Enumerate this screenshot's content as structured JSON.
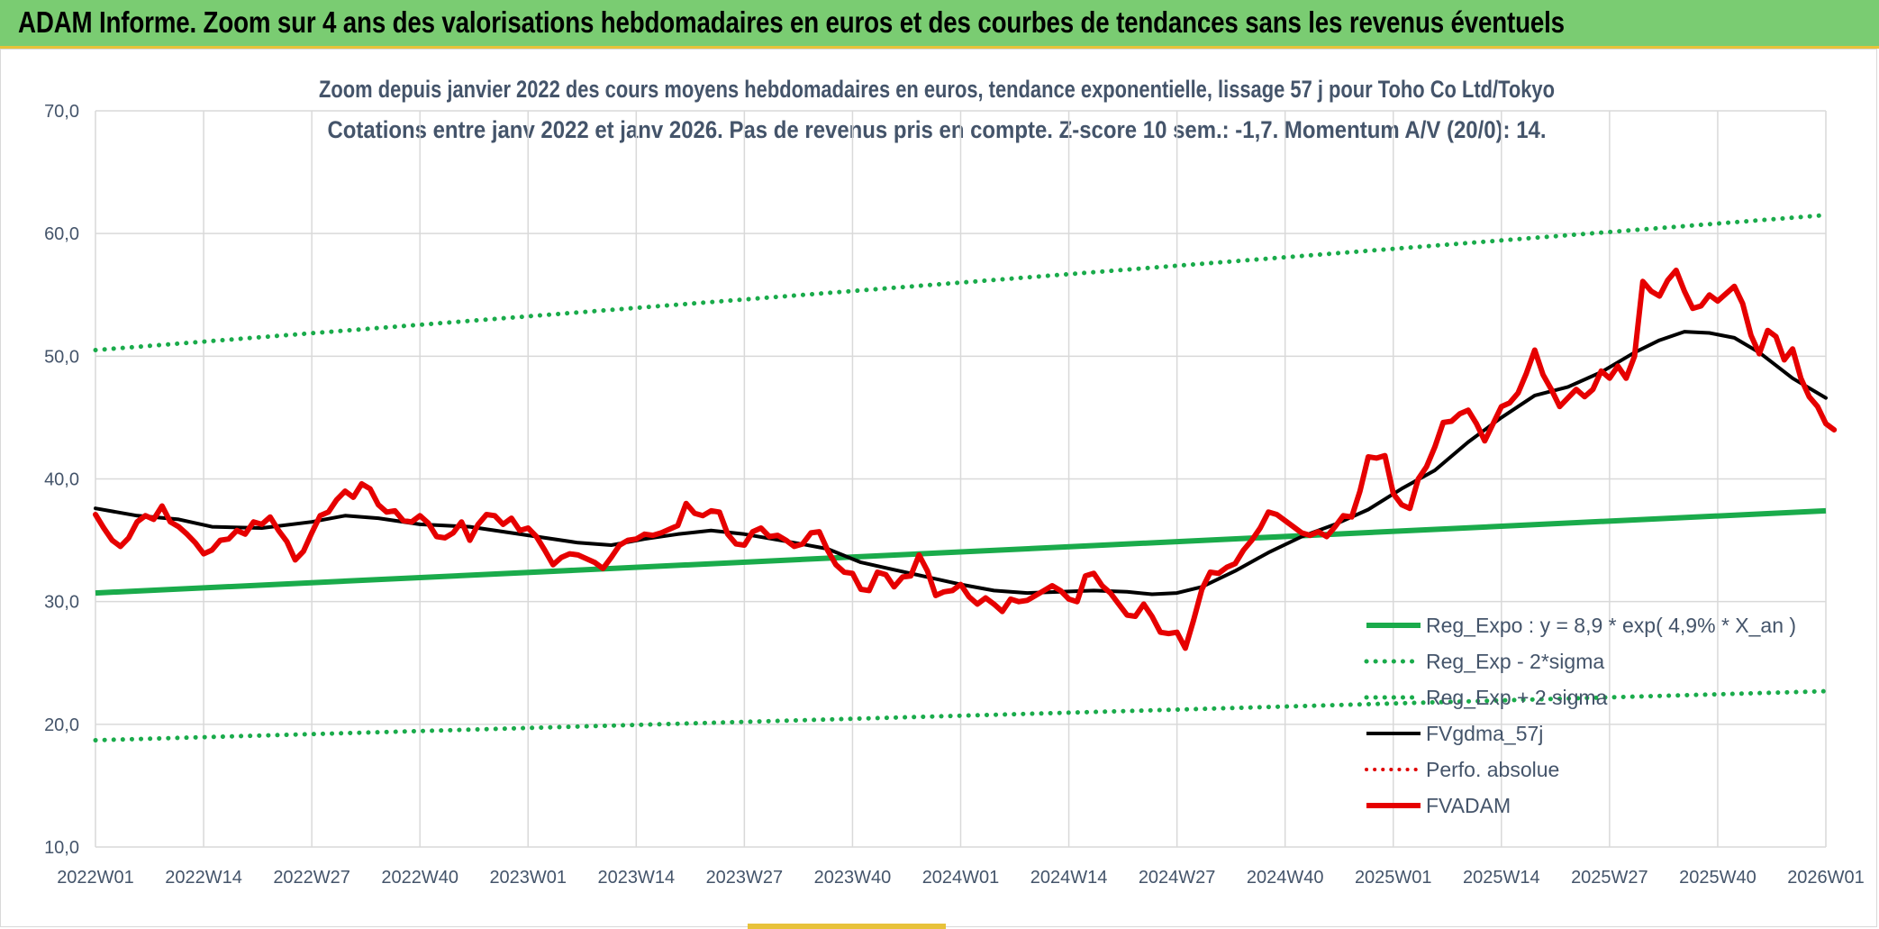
{
  "header": {
    "title": "ADAM Informe. Zoom sur 4 ans des valorisations hebdomadaires en euros et des courbes de tendances sans les revenus éventuels"
  },
  "colors": {
    "banner": "#7acc72",
    "regression": "#1aab4b",
    "fvgdma": "#000000",
    "perfo": "#e00000",
    "fvadam": "#e60000",
    "grid": "#d9d9d9",
    "text": "#44546a"
  },
  "chart_data": {
    "type": "line",
    "title_line1": "Zoom depuis janvier 2022 des cours moyens hebdomadaires en euros, tendance exponentielle, lissage 57 j pour Toho Co Ltd/Tokyo",
    "title_line2": "Cotations entre janv 2022 et janv 2026. Pas de revenus pris en compte. Z-score 10 sem.: -1,7. Momentum A/V (20/0): 14.",
    "xlabel": "",
    "ylabel": "",
    "x_index_range": [
      0,
      208
    ],
    "ylim": [
      10,
      70
    ],
    "yticks": [
      10,
      20,
      30,
      40,
      50,
      60,
      70
    ],
    "ytick_labels": [
      "10,0",
      "20,0",
      "30,0",
      "40,0",
      "50,0",
      "60,0",
      "70,0"
    ],
    "xticks": [
      {
        "i": 0,
        "label": "2022W01"
      },
      {
        "i": 13,
        "label": "2022W14"
      },
      {
        "i": 26,
        "label": "2022W27"
      },
      {
        "i": 39,
        "label": "2022W40"
      },
      {
        "i": 52,
        "label": "2023W01"
      },
      {
        "i": 65,
        "label": "2023W14"
      },
      {
        "i": 78,
        "label": "2023W27"
      },
      {
        "i": 91,
        "label": "2023W40"
      },
      {
        "i": 104,
        "label": "2024W01"
      },
      {
        "i": 117,
        "label": "2024W14"
      },
      {
        "i": 130,
        "label": "2024W27"
      },
      {
        "i": 143,
        "label": "2024W40"
      },
      {
        "i": 156,
        "label": "2025W01"
      },
      {
        "i": 169,
        "label": "2025W14"
      },
      {
        "i": 182,
        "label": "2025W27"
      },
      {
        "i": 195,
        "label": "2025W40"
      },
      {
        "i": 208,
        "label": "2026W01"
      }
    ],
    "legend": [
      {
        "key": "reg",
        "label": "Reg_Expo : y = 8,9 * exp( 4,9% *  X_an )",
        "style": "solid-green"
      },
      {
        "key": "minus",
        "label": "Reg_Exp - 2*sigma",
        "style": "dotted-green"
      },
      {
        "key": "plus",
        "label": "Reg_Exp + 2 sigma",
        "style": "dotted-green"
      },
      {
        "key": "fvgdma",
        "label": "FVgdma_57j",
        "style": "solid-black"
      },
      {
        "key": "perfo",
        "label": "Perfo. absolue",
        "style": "dotted-red"
      },
      {
        "key": "fvadam",
        "label": "FVADAM",
        "style": "solid-red"
      }
    ],
    "series": [
      {
        "name": "Reg_Expo",
        "points": [
          [
            0,
            30.7
          ],
          [
            208,
            37.4
          ]
        ]
      },
      {
        "name": "Reg_Exp - 2*sigma",
        "points": [
          [
            0,
            18.7
          ],
          [
            208,
            22.7
          ]
        ]
      },
      {
        "name": "Reg_Exp + 2 sigma",
        "points": [
          [
            0,
            50.5
          ],
          [
            208,
            61.5
          ]
        ]
      },
      {
        "name": "FVgdma_57j",
        "points": [
          [
            0,
            37.6
          ],
          [
            5,
            37.0
          ],
          [
            10,
            36.7
          ],
          [
            14,
            36.1
          ],
          [
            20,
            36.0
          ],
          [
            26,
            36.5
          ],
          [
            30,
            37.0
          ],
          [
            34,
            36.8
          ],
          [
            39,
            36.3
          ],
          [
            45,
            36.1
          ],
          [
            52,
            35.4
          ],
          [
            58,
            34.8
          ],
          [
            62,
            34.6
          ],
          [
            66,
            35.1
          ],
          [
            70,
            35.5
          ],
          [
            74,
            35.8
          ],
          [
            78,
            35.5
          ],
          [
            84,
            34.8
          ],
          [
            88,
            34.3
          ],
          [
            92,
            33.2
          ],
          [
            96,
            32.6
          ],
          [
            100,
            32.0
          ],
          [
            104,
            31.4
          ],
          [
            108,
            30.9
          ],
          [
            112,
            30.7
          ],
          [
            116,
            30.8
          ],
          [
            120,
            30.9
          ],
          [
            124,
            30.8
          ],
          [
            127,
            30.6
          ],
          [
            130,
            30.7
          ],
          [
            133,
            31.2
          ],
          [
            137,
            32.5
          ],
          [
            141,
            34.0
          ],
          [
            145,
            35.3
          ],
          [
            149,
            36.3
          ],
          [
            153,
            37.5
          ],
          [
            157,
            39.2
          ],
          [
            161,
            40.7
          ],
          [
            165,
            43.0
          ],
          [
            169,
            45.0
          ],
          [
            173,
            46.8
          ],
          [
            177,
            47.5
          ],
          [
            181,
            48.7
          ],
          [
            185,
            50.3
          ],
          [
            188,
            51.3
          ],
          [
            191,
            52.0
          ],
          [
            194,
            51.9
          ],
          [
            197,
            51.5
          ],
          [
            200,
            50.3
          ],
          [
            204,
            48.2
          ],
          [
            208,
            46.6
          ]
        ]
      },
      {
        "name": "FVADAM",
        "points": [
          [
            0,
            37.1
          ],
          [
            1,
            36.0
          ],
          [
            2,
            35.0
          ],
          [
            3,
            34.5
          ],
          [
            4,
            35.2
          ],
          [
            5,
            36.5
          ],
          [
            6,
            37.0
          ],
          [
            7,
            36.7
          ],
          [
            8,
            37.8
          ],
          [
            9,
            36.5
          ],
          [
            10,
            36.1
          ],
          [
            11,
            35.5
          ],
          [
            12,
            34.8
          ],
          [
            13,
            33.9
          ],
          [
            14,
            34.2
          ],
          [
            15,
            35.0
          ],
          [
            16,
            35.1
          ],
          [
            17,
            35.8
          ],
          [
            18,
            35.5
          ],
          [
            19,
            36.5
          ],
          [
            20,
            36.3
          ],
          [
            21,
            36.9
          ],
          [
            22,
            35.8
          ],
          [
            23,
            34.9
          ],
          [
            24,
            33.4
          ],
          [
            25,
            34.1
          ],
          [
            26,
            35.6
          ],
          [
            27,
            37.0
          ],
          [
            28,
            37.3
          ],
          [
            29,
            38.3
          ],
          [
            30,
            39.0
          ],
          [
            31,
            38.5
          ],
          [
            32,
            39.6
          ],
          [
            33,
            39.2
          ],
          [
            34,
            37.9
          ],
          [
            35,
            37.3
          ],
          [
            36,
            37.4
          ],
          [
            37,
            36.6
          ],
          [
            38,
            36.5
          ],
          [
            39,
            37.0
          ],
          [
            40,
            36.4
          ],
          [
            41,
            35.3
          ],
          [
            42,
            35.2
          ],
          [
            43,
            35.6
          ],
          [
            44,
            36.5
          ],
          [
            45,
            35.0
          ],
          [
            46,
            36.3
          ],
          [
            47,
            37.1
          ],
          [
            48,
            37.0
          ],
          [
            49,
            36.3
          ],
          [
            50,
            36.8
          ],
          [
            51,
            35.8
          ],
          [
            52,
            36.0
          ],
          [
            53,
            35.3
          ],
          [
            54,
            34.2
          ],
          [
            55,
            33.0
          ],
          [
            56,
            33.6
          ],
          [
            57,
            33.9
          ],
          [
            58,
            33.8
          ],
          [
            59,
            33.5
          ],
          [
            60,
            33.2
          ],
          [
            61,
            32.7
          ],
          [
            62,
            33.6
          ],
          [
            63,
            34.6
          ],
          [
            64,
            35.0
          ],
          [
            65,
            35.1
          ],
          [
            66,
            35.5
          ],
          [
            67,
            35.4
          ],
          [
            68,
            35.6
          ],
          [
            69,
            35.9
          ],
          [
            70,
            36.2
          ],
          [
            71,
            38.0
          ],
          [
            72,
            37.2
          ],
          [
            73,
            37.0
          ],
          [
            74,
            37.4
          ],
          [
            75,
            37.3
          ],
          [
            76,
            35.5
          ],
          [
            77,
            34.7
          ],
          [
            78,
            34.6
          ],
          [
            79,
            35.7
          ],
          [
            80,
            36.0
          ],
          [
            81,
            35.3
          ],
          [
            82,
            35.4
          ],
          [
            83,
            35.0
          ],
          [
            84,
            34.5
          ],
          [
            85,
            34.7
          ],
          [
            86,
            35.6
          ],
          [
            87,
            35.7
          ],
          [
            88,
            34.2
          ],
          [
            89,
            33.0
          ],
          [
            90,
            32.4
          ],
          [
            91,
            32.3
          ],
          [
            92,
            31.0
          ],
          [
            93,
            30.9
          ],
          [
            94,
            32.4
          ],
          [
            95,
            32.2
          ],
          [
            96,
            31.2
          ],
          [
            97,
            32.0
          ],
          [
            98,
            32.1
          ],
          [
            99,
            33.8
          ],
          [
            100,
            32.5
          ],
          [
            101,
            30.5
          ],
          [
            102,
            30.8
          ],
          [
            103,
            30.9
          ],
          [
            104,
            31.4
          ],
          [
            105,
            30.4
          ],
          [
            106,
            29.8
          ],
          [
            107,
            30.3
          ],
          [
            108,
            29.8
          ],
          [
            109,
            29.2
          ],
          [
            110,
            30.2
          ],
          [
            111,
            30.0
          ],
          [
            112,
            30.1
          ],
          [
            113,
            30.5
          ],
          [
            114,
            30.9
          ],
          [
            115,
            31.3
          ],
          [
            116,
            30.9
          ],
          [
            117,
            30.2
          ],
          [
            118,
            30.0
          ],
          [
            119,
            32.1
          ],
          [
            120,
            32.3
          ],
          [
            121,
            31.3
          ],
          [
            122,
            30.7
          ],
          [
            123,
            29.8
          ],
          [
            124,
            28.9
          ],
          [
            125,
            28.8
          ],
          [
            126,
            29.8
          ],
          [
            127,
            28.8
          ],
          [
            128,
            27.5
          ],
          [
            129,
            27.4
          ],
          [
            130,
            27.5
          ],
          [
            131,
            26.2
          ],
          [
            132,
            28.5
          ],
          [
            133,
            31.0
          ],
          [
            134,
            32.4
          ],
          [
            135,
            32.3
          ],
          [
            136,
            32.8
          ],
          [
            137,
            33.1
          ],
          [
            138,
            34.2
          ],
          [
            139,
            35.0
          ],
          [
            140,
            36.0
          ],
          [
            141,
            37.3
          ],
          [
            142,
            37.1
          ],
          [
            143,
            36.6
          ],
          [
            144,
            36.1
          ],
          [
            145,
            35.6
          ],
          [
            146,
            35.4
          ],
          [
            147,
            35.7
          ],
          [
            148,
            35.3
          ],
          [
            149,
            36.1
          ],
          [
            150,
            37.0
          ],
          [
            151,
            36.9
          ],
          [
            152,
            39.0
          ],
          [
            153,
            41.8
          ],
          [
            154,
            41.7
          ],
          [
            155,
            41.9
          ],
          [
            156,
            38.8
          ],
          [
            157,
            37.9
          ],
          [
            158,
            37.6
          ],
          [
            159,
            40.0
          ],
          [
            160,
            41.0
          ],
          [
            161,
            42.6
          ],
          [
            162,
            44.6
          ],
          [
            163,
            44.7
          ],
          [
            164,
            45.3
          ],
          [
            165,
            45.6
          ],
          [
            166,
            44.5
          ],
          [
            167,
            43.1
          ],
          [
            168,
            44.5
          ],
          [
            169,
            45.9
          ],
          [
            170,
            46.2
          ],
          [
            171,
            47.0
          ],
          [
            172,
            48.6
          ],
          [
            173,
            50.5
          ],
          [
            174,
            48.5
          ],
          [
            175,
            47.3
          ],
          [
            176,
            45.9
          ],
          [
            177,
            46.6
          ],
          [
            178,
            47.3
          ],
          [
            179,
            46.7
          ],
          [
            180,
            47.3
          ],
          [
            181,
            48.8
          ],
          [
            182,
            48.2
          ],
          [
            183,
            49.2
          ],
          [
            184,
            48.2
          ],
          [
            185,
            50.0
          ],
          [
            186,
            56.1
          ],
          [
            187,
            55.3
          ],
          [
            188,
            54.9
          ],
          [
            189,
            56.2
          ],
          [
            190,
            57.0
          ],
          [
            191,
            55.3
          ],
          [
            192,
            53.9
          ],
          [
            193,
            54.1
          ],
          [
            194,
            55.0
          ],
          [
            195,
            54.5
          ],
          [
            196,
            55.1
          ],
          [
            197,
            55.7
          ],
          [
            198,
            54.3
          ],
          [
            199,
            51.7
          ],
          [
            200,
            50.2
          ],
          [
            201,
            52.1
          ],
          [
            202,
            51.6
          ],
          [
            203,
            49.7
          ],
          [
            204,
            50.6
          ],
          [
            205,
            48.2
          ],
          [
            206,
            46.7
          ],
          [
            207,
            45.9
          ],
          [
            208,
            44.5
          ],
          [
            209,
            44.0
          ]
        ]
      }
    ]
  }
}
